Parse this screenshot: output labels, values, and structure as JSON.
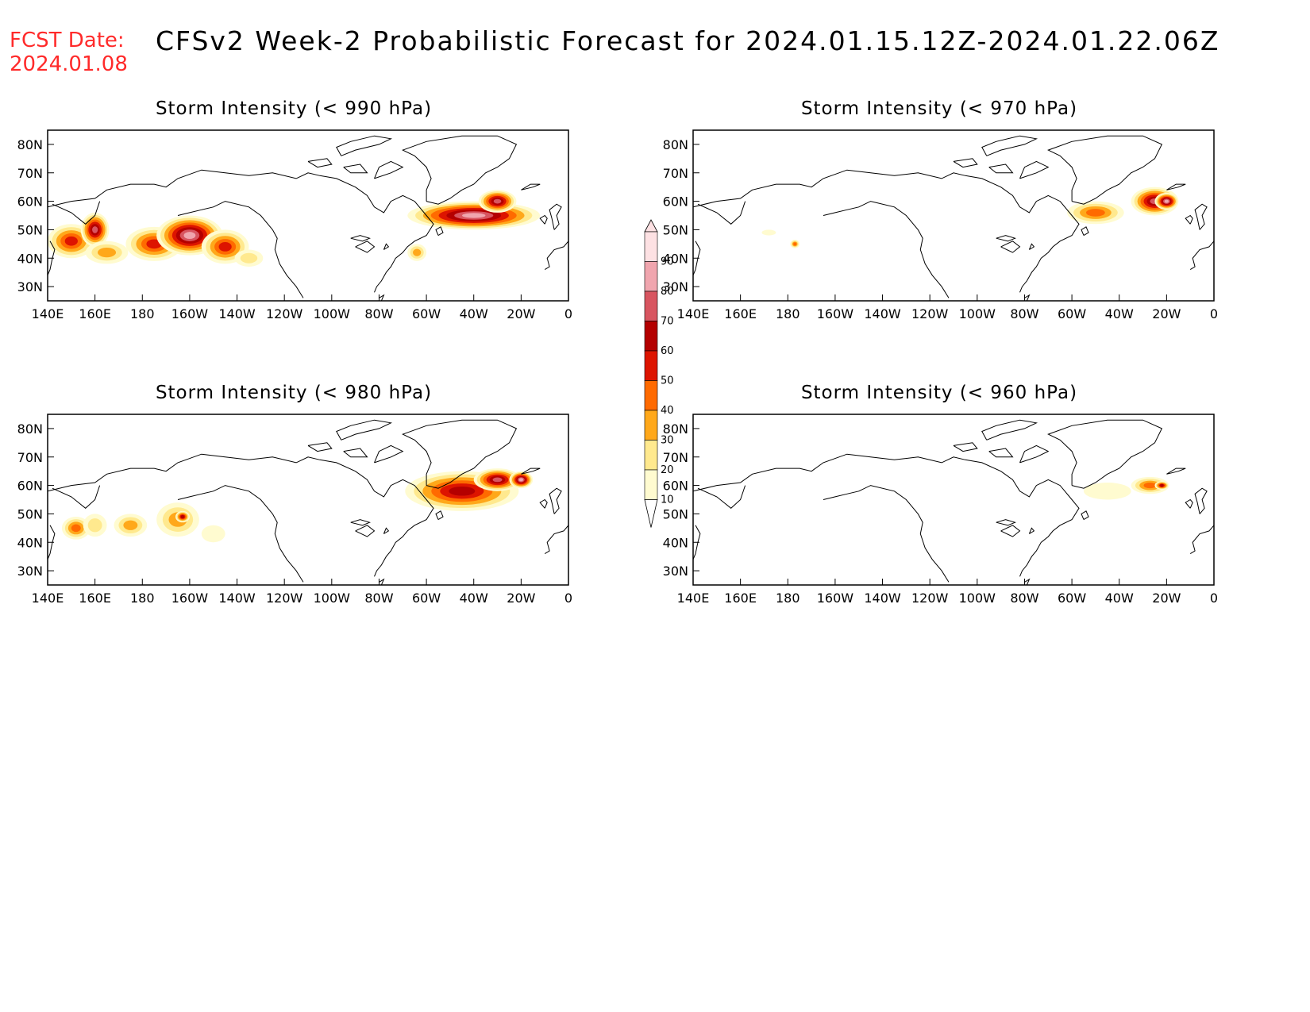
{
  "header": {
    "fcst_label_line1": "FCST Date:",
    "fcst_label_line2": "2024.01.08",
    "title": "CFSv2 Week-2 Probabilistic Forecast for 2024.01.15.12Z-2024.01.22.06Z"
  },
  "axes": {
    "lon_ticks": [
      "140E",
      "160E",
      "180",
      "160W",
      "140W",
      "120W",
      "100W",
      "80W",
      "60W",
      "40W",
      "20W",
      "0"
    ],
    "lat_ticks": [
      "80N",
      "70N",
      "60N",
      "50N",
      "40N",
      "30N"
    ]
  },
  "colorbar": {
    "levels": [
      "10",
      "20",
      "30",
      "40",
      "50",
      "60",
      "70",
      "80",
      "90"
    ],
    "colors": [
      "#fffbd0",
      "#ffe98e",
      "#ffa81a",
      "#ff6a00",
      "#dd1400",
      "#b40000",
      "#d85560",
      "#f0a5ae",
      "#fde1e3"
    ]
  },
  "panels": [
    {
      "id": "p990",
      "title": "Storm Intensity (< 990 hPa)",
      "blobs": [
        {
          "lon": 150,
          "lat": 46,
          "rx": 10,
          "ry": 6,
          "level": 5
        },
        {
          "lon": 160,
          "lat": 50,
          "rx": 6,
          "ry": 6,
          "level": 7
        },
        {
          "lon": 165,
          "lat": 42,
          "rx": 9,
          "ry": 4,
          "level": 3
        },
        {
          "lon": 185,
          "lat": 45,
          "rx": 12,
          "ry": 6,
          "level": 5
        },
        {
          "lon": 200,
          "lat": 48,
          "rx": 14,
          "ry": 7,
          "level": 8
        },
        {
          "lon": 215,
          "lat": 44,
          "rx": 10,
          "ry": 6,
          "level": 5
        },
        {
          "lon": 225,
          "lat": 40,
          "rx": 6,
          "ry": 3,
          "level": 2
        },
        {
          "lon": 296,
          "lat": 42,
          "rx": 4,
          "ry": 3,
          "level": 3
        },
        {
          "lon": 320,
          "lat": 55,
          "rx": 28,
          "ry": 5,
          "level": 8
        },
        {
          "lon": 330,
          "lat": 60,
          "rx": 8,
          "ry": 4,
          "level": 7
        }
      ]
    },
    {
      "id": "p970",
      "title": "Storm Intensity (< 970 hPa)",
      "blobs": [
        {
          "lon": 183,
          "lat": 45,
          "rx": 2,
          "ry": 1.5,
          "level": 4
        },
        {
          "lon": 172,
          "lat": 49,
          "rx": 3,
          "ry": 1,
          "level": 1
        },
        {
          "lon": 310,
          "lat": 56,
          "rx": 12,
          "ry": 4,
          "level": 4
        },
        {
          "lon": 335,
          "lat": 60,
          "rx": 10,
          "ry": 5,
          "level": 7
        },
        {
          "lon": 340,
          "lat": 60,
          "rx": 5,
          "ry": 3,
          "level": 8
        }
      ]
    },
    {
      "id": "p980",
      "title": "Storm Intensity (< 980 hPa)",
      "blobs": [
        {
          "lon": 152,
          "lat": 45,
          "rx": 6,
          "ry": 4,
          "level": 4
        },
        {
          "lon": 160,
          "lat": 46,
          "rx": 5,
          "ry": 4,
          "level": 2
        },
        {
          "lon": 175,
          "lat": 46,
          "rx": 7,
          "ry": 4,
          "level": 3
        },
        {
          "lon": 195,
          "lat": 48,
          "rx": 9,
          "ry": 6,
          "level": 3
        },
        {
          "lon": 197,
          "lat": 49,
          "rx": 3,
          "ry": 2,
          "level": 6
        },
        {
          "lon": 210,
          "lat": 43,
          "rx": 5,
          "ry": 3,
          "level": 1
        },
        {
          "lon": 315,
          "lat": 58,
          "rx": 24,
          "ry": 7,
          "level": 6
        },
        {
          "lon": 330,
          "lat": 62,
          "rx": 10,
          "ry": 4,
          "level": 7
        },
        {
          "lon": 340,
          "lat": 62,
          "rx": 5,
          "ry": 3,
          "level": 8
        }
      ]
    },
    {
      "id": "p960",
      "title": "Storm Intensity (< 960 hPa)",
      "blobs": [
        {
          "lon": 315,
          "lat": 58,
          "rx": 10,
          "ry": 3,
          "level": 1
        },
        {
          "lon": 333,
          "lat": 60,
          "rx": 8,
          "ry": 3,
          "level": 4
        },
        {
          "lon": 338,
          "lat": 60,
          "rx": 3,
          "ry": 1.5,
          "level": 6
        }
      ]
    }
  ]
}
